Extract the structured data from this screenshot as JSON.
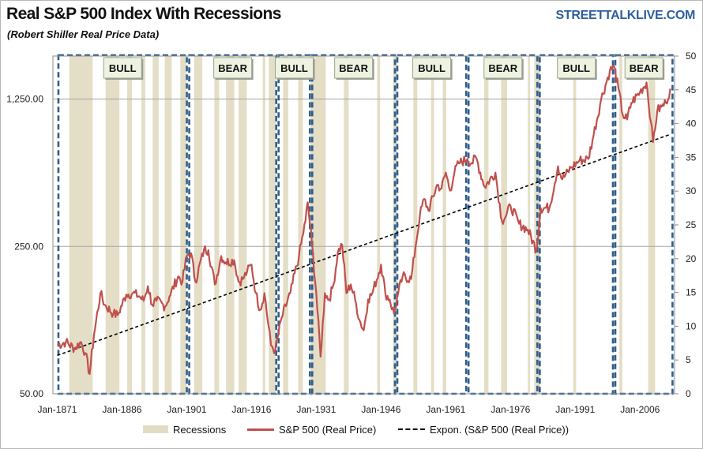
{
  "header": {
    "title": "Real S&P 500 Index With Recessions",
    "subtitle": "(Robert Shiller Real Price Data)",
    "brand": "STREETTALKLIVE.COM"
  },
  "legend": {
    "recessions": "Recessions",
    "sp500": "S&P 500 (Real Price)",
    "expon": "Expon. (S&P 500 (Real Price))"
  },
  "colors": {
    "price_line": "#c0504d",
    "recession_band": "#e3dcc4",
    "phase_border": "#2f5d8c",
    "trend_line": "#000000",
    "grid": "#a6a6a6"
  },
  "chart_data": {
    "type": "line",
    "x_axis": {
      "range": [
        1870,
        2014
      ],
      "tick_years": [
        1871,
        1886,
        1901,
        1916,
        1931,
        1946,
        1961,
        1976,
        1991,
        2006
      ],
      "tick_labels": [
        "Jan-1871",
        "Jan-1886",
        "Jan-1901",
        "Jan-1916",
        "Jan-1931",
        "Jan-1946",
        "Jan-1961",
        "Jan-1976",
        "Jan-1991",
        "Jan-2006"
      ]
    },
    "y_axis_left": {
      "scale": "log",
      "range": [
        50,
        2000
      ],
      "ticks": [
        50,
        250,
        1250
      ],
      "tick_labels": [
        "50.00",
        "250.00",
        "1,250.00"
      ]
    },
    "y_axis_right": {
      "range": [
        0,
        50
      ],
      "ticks": [
        0,
        5,
        10,
        15,
        20,
        25,
        30,
        35,
        40,
        45,
        50
      ],
      "tick_labels": [
        "0",
        "5",
        "10",
        "15",
        "20",
        "25",
        "30",
        "35",
        "40",
        "45",
        "50"
      ]
    },
    "series": [
      {
        "name": "S&P 500 (Real Price)",
        "points": [
          [
            1871,
            85
          ],
          [
            1873,
            88
          ],
          [
            1875,
            82
          ],
          [
            1876.5,
            88
          ],
          [
            1877.5,
            78
          ],
          [
            1878.5,
            62
          ],
          [
            1879.5,
            95
          ],
          [
            1881,
            150
          ],
          [
            1882,
            132
          ],
          [
            1884,
            120
          ],
          [
            1885,
            118
          ],
          [
            1887,
            148
          ],
          [
            1888.5,
            150
          ],
          [
            1890,
            145
          ],
          [
            1891,
            138
          ],
          [
            1892,
            162
          ],
          [
            1893,
            132
          ],
          [
            1894,
            138
          ],
          [
            1896,
            130
          ],
          [
            1897,
            145
          ],
          [
            1899,
            180
          ],
          [
            1900,
            170
          ],
          [
            1901,
            225
          ],
          [
            1902,
            232
          ],
          [
            1903,
            170
          ],
          [
            1905,
            242
          ],
          [
            1906,
            240
          ],
          [
            1907.5,
            165
          ],
          [
            1909,
            225
          ],
          [
            1910,
            210
          ],
          [
            1912,
            215
          ],
          [
            1913,
            170
          ],
          [
            1914,
            175
          ],
          [
            1915,
            190
          ],
          [
            1916,
            205
          ],
          [
            1917,
            150
          ],
          [
            1918,
            125
          ],
          [
            1919,
            150
          ],
          [
            1920.5,
            85
          ],
          [
            1921.5,
            80
          ],
          [
            1923,
            115
          ],
          [
            1925,
            150
          ],
          [
            1927,
            225
          ],
          [
            1928.5,
            330
          ],
          [
            1929,
            405
          ],
          [
            1930,
            260
          ],
          [
            1931,
            150
          ],
          [
            1932,
            75
          ],
          [
            1933,
            150
          ],
          [
            1934,
            140
          ],
          [
            1935,
            165
          ],
          [
            1936,
            235
          ],
          [
            1937,
            255
          ],
          [
            1938,
            150
          ],
          [
            1939,
            165
          ],
          [
            1940,
            140
          ],
          [
            1941,
            112
          ],
          [
            1942,
            100
          ],
          [
            1943,
            140
          ],
          [
            1944,
            150
          ],
          [
            1946,
            205
          ],
          [
            1947,
            150
          ],
          [
            1948,
            140
          ],
          [
            1949,
            120
          ],
          [
            1950,
            150
          ],
          [
            1951,
            180
          ],
          [
            1953,
            175
          ],
          [
            1954,
            250
          ],
          [
            1955,
            350
          ],
          [
            1956,
            420
          ],
          [
            1957,
            370
          ],
          [
            1959,
            490
          ],
          [
            1960,
            470
          ],
          [
            1961,
            560
          ],
          [
            1962,
            460
          ],
          [
            1963,
            560
          ],
          [
            1964,
            620
          ],
          [
            1966,
            650
          ],
          [
            1967,
            620
          ],
          [
            1968,
            660
          ],
          [
            1970,
            480
          ],
          [
            1972.5,
            560
          ],
          [
            1974,
            330
          ],
          [
            1975,
            350
          ],
          [
            1976,
            390
          ],
          [
            1978,
            320
          ],
          [
            1980,
            300
          ],
          [
            1982,
            240
          ],
          [
            1983,
            380
          ],
          [
            1985,
            380
          ],
          [
            1987,
            600
          ],
          [
            1988,
            520
          ],
          [
            1990,
            590
          ],
          [
            1992,
            640
          ],
          [
            1994,
            650
          ],
          [
            1995,
            800
          ],
          [
            1997,
            1250
          ],
          [
            1999,
            1700
          ],
          [
            2000,
            1780
          ],
          [
            2001,
            1400
          ],
          [
            2002,
            1050
          ],
          [
            2003,
            1000
          ],
          [
            2004,
            1200
          ],
          [
            2006,
            1350
          ],
          [
            2007.5,
            1500
          ],
          [
            2008.5,
            980
          ],
          [
            2009,
            780
          ],
          [
            2010,
            1100
          ],
          [
            2011,
            1150
          ],
          [
            2012,
            1200
          ],
          [
            2013,
            1400
          ]
        ]
      },
      {
        "name": "Expon. (S&P 500 (Real Price))",
        "points": [
          [
            1871,
            76
          ],
          [
            2013,
            850
          ]
        ]
      }
    ],
    "recessions": [
      [
        1873.8,
        1879.2
      ],
      [
        1882.2,
        1885.4
      ],
      [
        1887.2,
        1888.3
      ],
      [
        1890.5,
        1891.4
      ],
      [
        1893.1,
        1894.5
      ],
      [
        1895.9,
        1897.5
      ],
      [
        1899.5,
        1900.9
      ],
      [
        1902.7,
        1904.6
      ],
      [
        1907.4,
        1908.5
      ],
      [
        1910.1,
        1912.0
      ],
      [
        1913.0,
        1914.9
      ],
      [
        1918.6,
        1919.2
      ],
      [
        1920.0,
        1921.6
      ],
      [
        1923.3,
        1924.5
      ],
      [
        1926.8,
        1927.9
      ],
      [
        1929.6,
        1933.2
      ],
      [
        1937.4,
        1938.5
      ],
      [
        1945.1,
        1945.8
      ],
      [
        1948.8,
        1949.8
      ],
      [
        1953.5,
        1954.4
      ],
      [
        1957.6,
        1958.3
      ],
      [
        1960.3,
        1961.1
      ],
      [
        1969.9,
        1970.9
      ],
      [
        1973.8,
        1975.2
      ],
      [
        1980.0,
        1980.5
      ],
      [
        1981.5,
        1982.9
      ],
      [
        1990.5,
        1991.2
      ],
      [
        2001.2,
        2001.9
      ],
      [
        2007.9,
        2009.5
      ]
    ],
    "phases": [
      {
        "label": "BULL",
        "start": 1871,
        "end": 1901.3
      },
      {
        "label": "BEAR",
        "start": 1901.3,
        "end": 1922
      },
      {
        "label": "BULL",
        "start": 1922,
        "end": 1929.8
      },
      {
        "label": "BEAR",
        "start": 1929.8,
        "end": 1949.5
      },
      {
        "label": "BULL",
        "start": 1949.5,
        "end": 1966
      },
      {
        "label": "BEAR",
        "start": 1966,
        "end": 1982.5
      },
      {
        "label": "BULL",
        "start": 1982.5,
        "end": 2000
      },
      {
        "label": "BEAR",
        "start": 2000,
        "end": 2013.8
      }
    ]
  }
}
